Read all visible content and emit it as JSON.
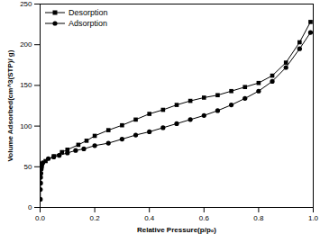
{
  "chart_data": {
    "type": "line",
    "x_label": "Relative Pressure(p/p₀)",
    "y_label": "Volume Adsorbed(cm^3(STP)/ g)",
    "xlim": [
      0,
      1
    ],
    "xticks": [
      {
        "value": 0,
        "label": "0.0"
      },
      {
        "value": 0.2,
        "label": "0.2"
      },
      {
        "value": 0.4,
        "label": "0.4"
      },
      {
        "value": 0.6,
        "label": "0.6"
      },
      {
        "value": 0.8,
        "label": "0.8"
      },
      {
        "value": 1,
        "label": "1.0"
      }
    ],
    "ylim": [
      0,
      250
    ],
    "yticks": [
      0,
      50,
      100,
      150,
      200,
      250
    ],
    "legend": "upper left",
    "series": [
      {
        "name": "Desorption",
        "color": "#000000",
        "marker": "square",
        "line_style": "solid",
        "x": [
          0.99,
          0.95,
          0.9,
          0.85,
          0.8,
          0.75,
          0.7,
          0.65,
          0.6,
          0.55,
          0.5,
          0.45,
          0.4,
          0.35,
          0.3,
          0.25,
          0.2,
          0.17,
          0.14,
          0.1,
          0.08,
          0.05,
          0.02,
          0.005
        ],
        "values": [
          228,
          203,
          178,
          162,
          153,
          148,
          143,
          138,
          135,
          131,
          126,
          120,
          115,
          108,
          101,
          95,
          88,
          82,
          77,
          71,
          68,
          63,
          57,
          50
        ]
      },
      {
        "name": "Adsorption",
        "color": "#000000",
        "marker": "circle",
        "line_style": "solid",
        "x": [
          0.001,
          0.001,
          0.002,
          0.002,
          0.003,
          0.004,
          0.005,
          0.007,
          0.01,
          0.03,
          0.05,
          0.07,
          0.1,
          0.13,
          0.16,
          0.2,
          0.25,
          0.3,
          0.35,
          0.4,
          0.45,
          0.5,
          0.55,
          0.6,
          0.65,
          0.7,
          0.75,
          0.8,
          0.85,
          0.9,
          0.95,
          0.99
        ],
        "values": [
          10,
          22,
          30,
          37,
          42,
          47,
          50,
          53,
          55,
          60,
          62,
          64,
          67,
          70,
          72,
          76,
          79,
          84,
          89,
          93,
          98,
          103,
          108,
          113,
          119,
          126,
          134,
          143,
          155,
          172,
          195,
          215
        ]
      }
    ]
  }
}
